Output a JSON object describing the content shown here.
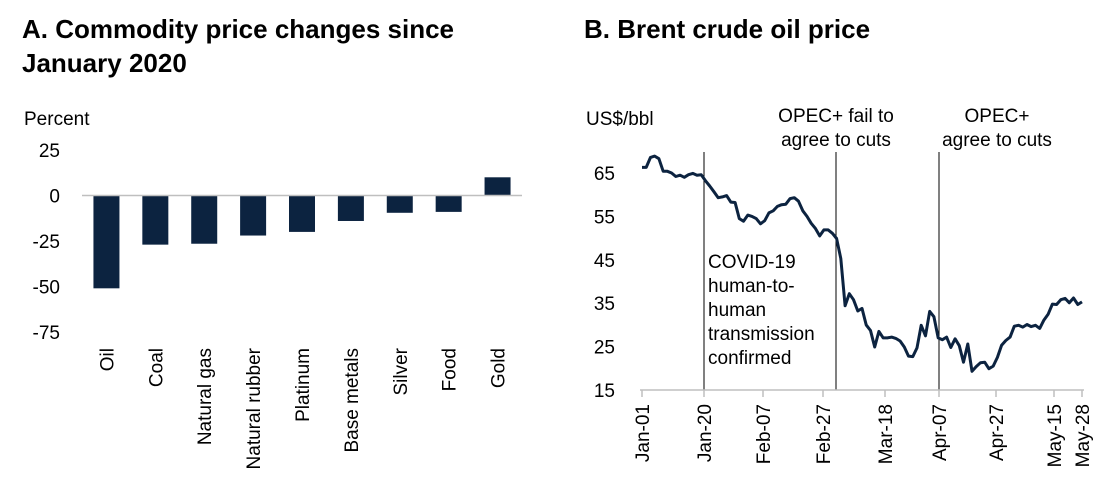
{
  "panel_a": {
    "title_line1": "A. Commodity price changes since",
    "title_line2": "January 2020"
  },
  "panel_b": {
    "title": "B. Brent crude oil price"
  },
  "colors": {
    "bar": "#0c2340",
    "line": "#0c2340",
    "axis": "#bfbfbf",
    "marker": "#000000"
  },
  "chart_data": [
    {
      "type": "bar",
      "title": "A. Commodity price changes since January 2020",
      "ylabel": "Percent",
      "ylim": [
        -75,
        25
      ],
      "yticks": [
        25,
        0,
        -25,
        -50,
        -75
      ],
      "categories": [
        "Oil",
        "Coal",
        "Natural gas",
        "Natural rubber",
        "Platinum",
        "Base metals",
        "Silver",
        "Food",
        "Gold"
      ],
      "values": [
        -51,
        -27,
        -26.5,
        -22,
        -20,
        -14,
        -9.5,
        -9,
        10
      ]
    },
    {
      "type": "line",
      "title": "B. Brent crude oil price",
      "ylabel": "US$/bbl",
      "ylim": [
        15,
        70
      ],
      "yticks": [
        65,
        55,
        45,
        35,
        25,
        15
      ],
      "xticks": [
        "Jan-01",
        "Jan-20",
        "Feb-07",
        "Feb-27",
        "Mar-18",
        "Apr-07",
        "Apr-27",
        "May-15",
        "May-28"
      ],
      "x": [
        "Jan-01",
        "Jan-02",
        "Jan-03",
        "Jan-06",
        "Jan-07",
        "Jan-08",
        "Jan-09",
        "Jan-10",
        "Jan-13",
        "Jan-14",
        "Jan-15",
        "Jan-16",
        "Jan-17",
        "Jan-20",
        "Jan-21",
        "Jan-22",
        "Jan-23",
        "Jan-24",
        "Jan-27",
        "Jan-28",
        "Jan-29",
        "Jan-30",
        "Jan-31",
        "Feb-03",
        "Feb-04",
        "Feb-05",
        "Feb-06",
        "Feb-07",
        "Feb-10",
        "Feb-11",
        "Feb-12",
        "Feb-13",
        "Feb-14",
        "Feb-17",
        "Feb-18",
        "Feb-19",
        "Feb-20",
        "Feb-21",
        "Feb-24",
        "Feb-25",
        "Feb-26",
        "Feb-27",
        "Feb-28",
        "Mar-02",
        "Mar-03",
        "Mar-04",
        "Mar-05",
        "Mar-06",
        "Mar-09",
        "Mar-10",
        "Mar-11",
        "Mar-12",
        "Mar-13",
        "Mar-16",
        "Mar-17",
        "Mar-18",
        "Mar-19",
        "Mar-20",
        "Mar-23",
        "Mar-24",
        "Mar-25",
        "Mar-26",
        "Mar-27",
        "Mar-30",
        "Mar-31",
        "Apr-01",
        "Apr-02",
        "Apr-03",
        "Apr-06",
        "Apr-07",
        "Apr-08",
        "Apr-09",
        "Apr-13",
        "Apr-14",
        "Apr-15",
        "Apr-16",
        "Apr-17",
        "Apr-20",
        "Apr-21",
        "Apr-22",
        "Apr-23",
        "Apr-24",
        "Apr-27",
        "Apr-28",
        "Apr-29",
        "Apr-30",
        "May-01",
        "May-04",
        "May-05",
        "May-06",
        "May-07",
        "May-08",
        "May-11",
        "May-12",
        "May-13",
        "May-14",
        "May-15",
        "May-18",
        "May-19",
        "May-20",
        "May-21",
        "May-22",
        "May-26",
        "May-27",
        "May-28"
      ],
      "values": [
        66.3,
        66.3,
        68.6,
        68.9,
        68.3,
        65.4,
        65.4,
        65.0,
        64.2,
        64.5,
        64.0,
        64.6,
        64.9,
        64.5,
        64.6,
        63.2,
        62.0,
        60.7,
        59.3,
        59.5,
        59.8,
        58.3,
        58.2,
        54.5,
        53.9,
        55.3,
        55.0,
        54.5,
        53.3,
        54.0,
        55.8,
        56.3,
        57.3,
        57.7,
        57.8,
        59.1,
        59.3,
        58.5,
        56.3,
        55.0,
        53.4,
        52.2,
        50.5,
        51.9,
        51.9,
        51.1,
        49.9,
        45.3,
        34.4,
        37.2,
        35.8,
        33.2,
        33.8,
        30.0,
        28.7,
        24.9,
        28.5,
        27.0,
        27.0,
        27.2,
        26.9,
        26.3,
        24.9,
        22.8,
        22.7,
        24.7,
        29.9,
        27.5,
        33.1,
        31.9,
        27.0,
        26.6,
        27.2,
        24.8,
        26.8,
        25.2,
        21.4,
        25.6,
        19.3,
        20.4,
        21.3,
        21.4,
        19.9,
        20.5,
        22.5,
        25.3,
        26.4,
        27.2,
        29.7,
        29.9,
        29.5,
        30.1,
        29.6,
        29.9,
        29.2,
        31.1,
        32.5,
        34.8,
        34.7,
        35.8,
        36.1,
        35.1,
        36.2,
        34.7,
        35.3
      ],
      "annotations": [
        {
          "at": "Jan-20",
          "lines": [
            "COVID-19",
            "human-to-",
            "human",
            "transmission",
            "confirmed"
          ]
        },
        {
          "at": "Mar-06",
          "lines": [
            "OPEC+ fail to",
            "agree to cuts"
          ]
        },
        {
          "at": "Apr-09",
          "lines": [
            "OPEC+",
            "agree to cuts"
          ]
        }
      ]
    }
  ]
}
